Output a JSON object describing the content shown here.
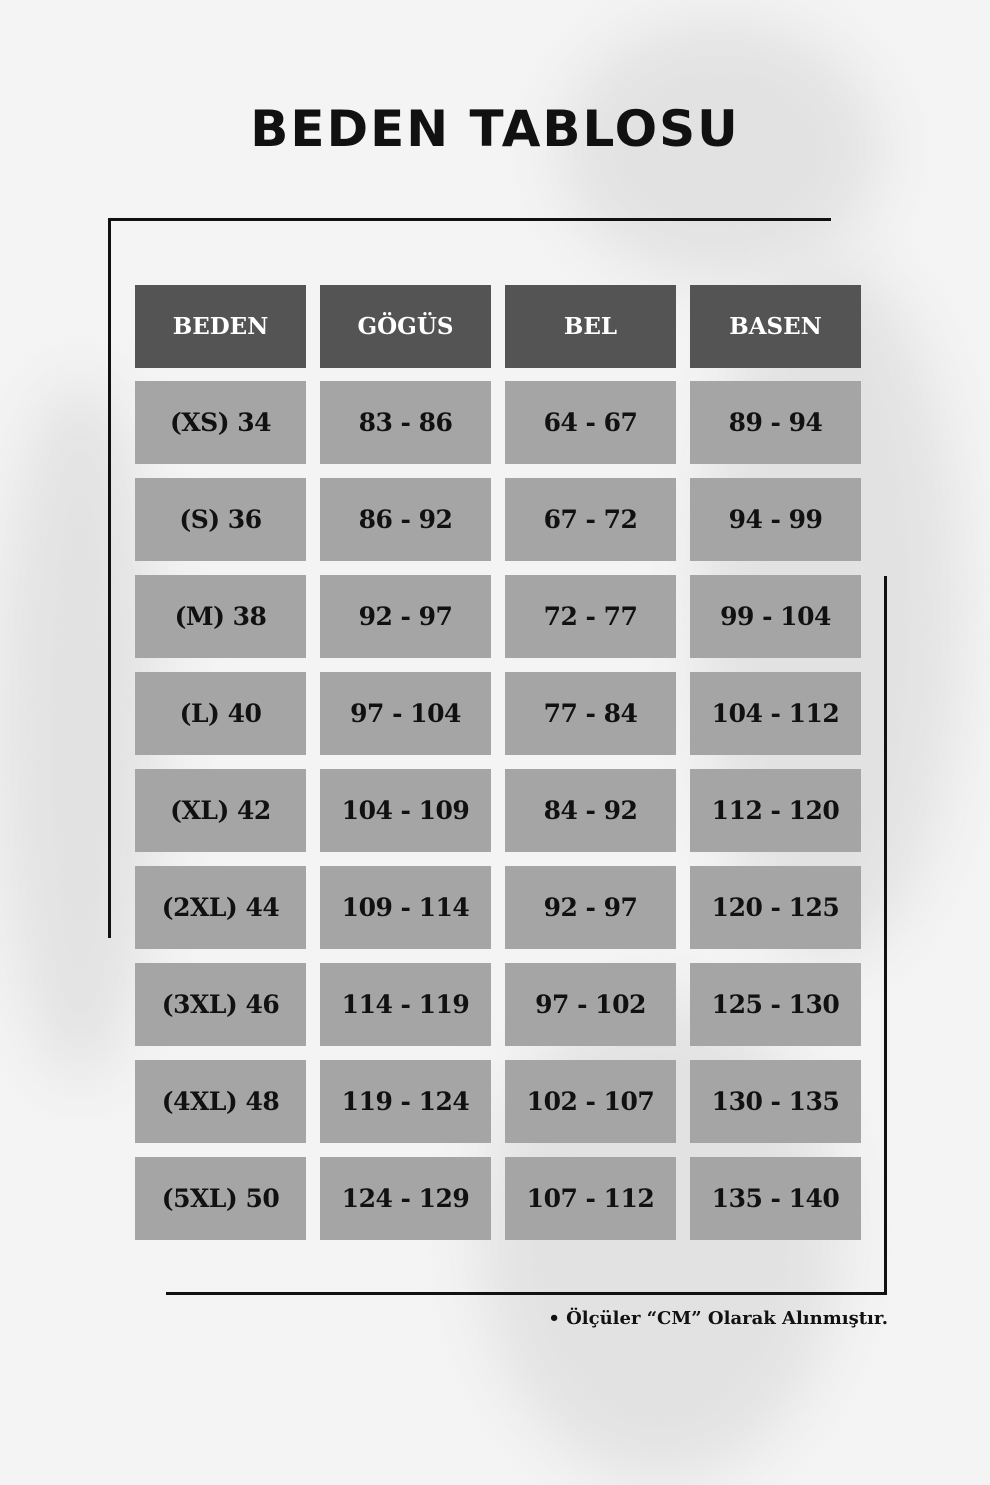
{
  "title": "BEDEN TABLOSU",
  "table": {
    "headers": [
      "BEDEN",
      "GÖGÜS",
      "BEL",
      "BASEN"
    ],
    "rows": [
      [
        "(XS) 34",
        "83 - 86",
        "64 - 67",
        "89 - 94"
      ],
      [
        "(S) 36",
        "86 - 92",
        "67 - 72",
        "94 - 99"
      ],
      [
        "(M) 38",
        "92 - 97",
        "72 - 77",
        "99 - 104"
      ],
      [
        "(L) 40",
        "97 - 104",
        "77 - 84",
        "104 - 112"
      ],
      [
        "(XL) 42",
        "104 - 109",
        "84 - 92",
        "112 - 120"
      ],
      [
        "(2XL) 44",
        "109 - 114",
        "92 - 97",
        "120 - 125"
      ],
      [
        "(3XL) 46",
        "114 - 119",
        "97 - 102",
        "125 - 130"
      ],
      [
        "(4XL) 48",
        "119 - 124",
        "102 - 107",
        "130 - 135"
      ],
      [
        "(5XL) 50",
        "124 - 129",
        "107 - 112",
        "135 - 140"
      ]
    ]
  },
  "note": "• Ölçüler “CM” Olarak Alınmıştır.",
  "colors": {
    "header_bg": "#545454",
    "cell_bg": "#a5a5a5",
    "background": "#f4f4f4"
  }
}
